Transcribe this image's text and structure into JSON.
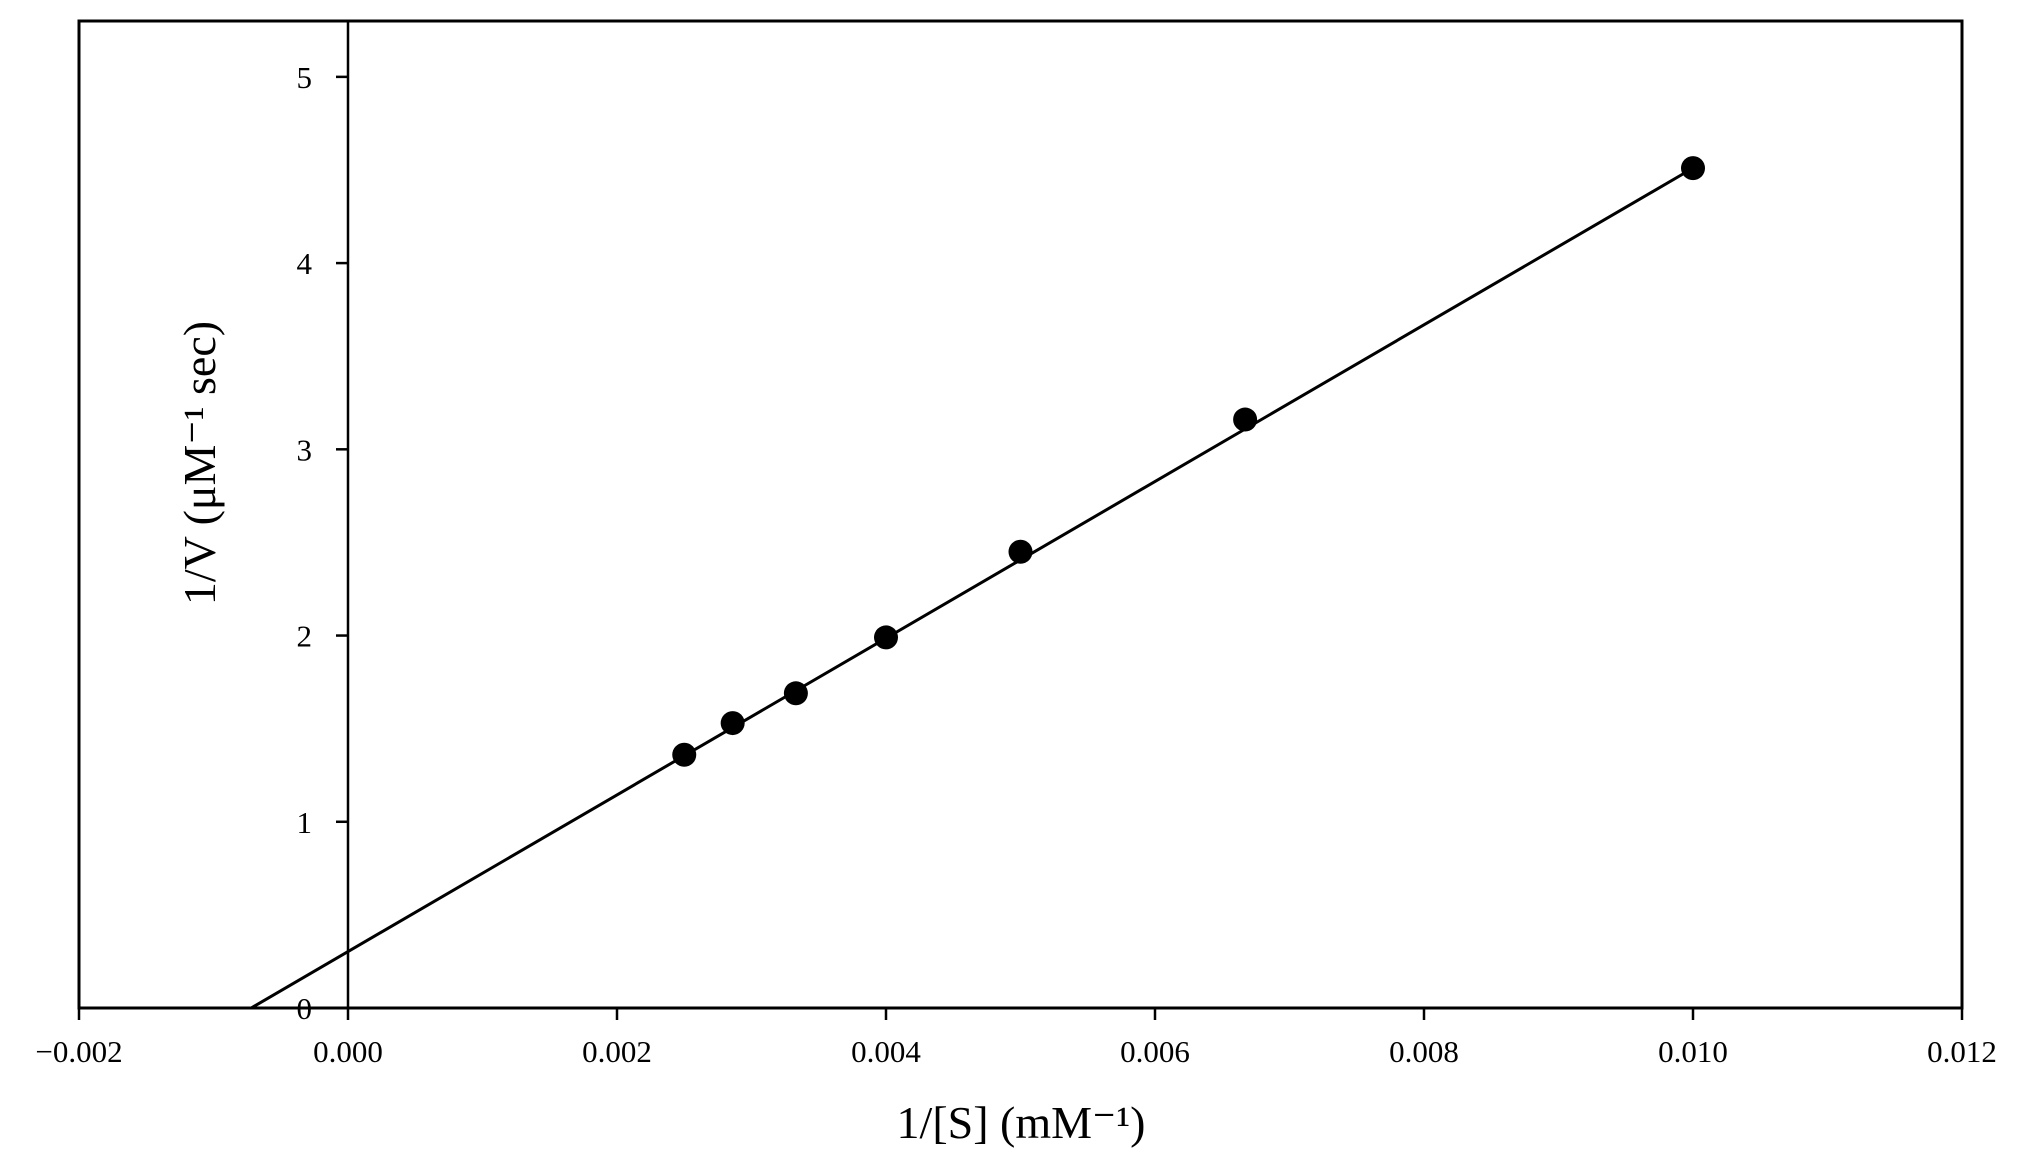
{
  "chart_data": {
    "type": "scatter",
    "title": "",
    "xlabel": "1/[S] (mM⁻¹)",
    "ylabel": "1/V (μM⁻¹ sec)",
    "xlim": [
      -0.002,
      0.012
    ],
    "ylim": [
      0,
      5.3
    ],
    "x_ticks": [
      -0.002,
      0.0,
      0.002,
      0.004,
      0.006,
      0.008,
      0.01,
      0.012
    ],
    "x_tick_labels": [
      "−0.002",
      "0.000",
      "0.002",
      "0.004",
      "0.006",
      "0.008",
      "0.010",
      "0.012"
    ],
    "y_ticks": [
      0,
      1,
      2,
      3,
      4,
      5
    ],
    "y_tick_labels": [
      "0",
      "1",
      "2",
      "3",
      "4",
      "5"
    ],
    "grid": false,
    "legend": "none",
    "series": [
      {
        "x": [
          0.0025,
          0.00286,
          0.00333,
          0.004,
          0.005,
          0.00667,
          0.01
        ],
        "y": [
          1.36,
          1.53,
          1.69,
          1.99,
          2.45,
          3.16,
          4.51
        ]
      }
    ],
    "fit_line": {
      "x": [
        -0.00072,
        0.01
      ],
      "y": [
        0.0,
        4.51
      ]
    },
    "colors": {
      "marker": "#000000",
      "line": "#000000"
    }
  }
}
